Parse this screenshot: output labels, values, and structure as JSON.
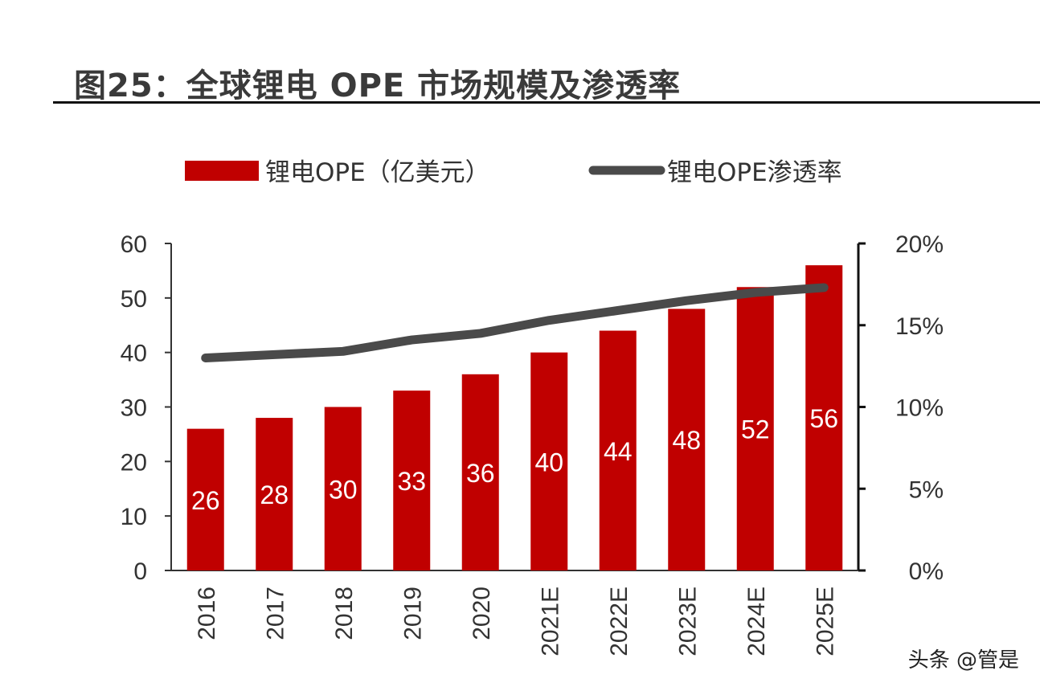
{
  "title": "图25：全球锂电 OPE 市场规模及渗透率",
  "watermark": "头条 @管是",
  "chart_data": {
    "type": "bar",
    "title": "图25：全球锂电 OPE 市场规模及渗透率",
    "categories": [
      "2016",
      "2017",
      "2018",
      "2019",
      "2020",
      "2021E",
      "2022E",
      "2023E",
      "2024E",
      "2025E"
    ],
    "series": [
      {
        "name": "锂电OPE（亿美元）",
        "type": "bar",
        "axis": "left",
        "color": "#c00000",
        "values": [
          26,
          28,
          30,
          33,
          36,
          40,
          44,
          48,
          52,
          56
        ]
      },
      {
        "name": "锂电OPE渗透率",
        "type": "line",
        "axis": "right",
        "color": "#4a4a4a",
        "values": [
          13.0,
          13.2,
          13.4,
          14.1,
          14.5,
          15.3,
          15.9,
          16.5,
          17.0,
          17.3
        ]
      }
    ],
    "ylim": [
      0,
      60
    ],
    "yticks": [
      "0",
      "10",
      "20",
      "30",
      "40",
      "50",
      "60"
    ],
    "y2lim": [
      0,
      20
    ],
    "y2ticks": [
      "0%",
      "5%",
      "10%",
      "15%",
      "20%"
    ],
    "legend": "top",
    "grid": false,
    "data_labels": true
  }
}
